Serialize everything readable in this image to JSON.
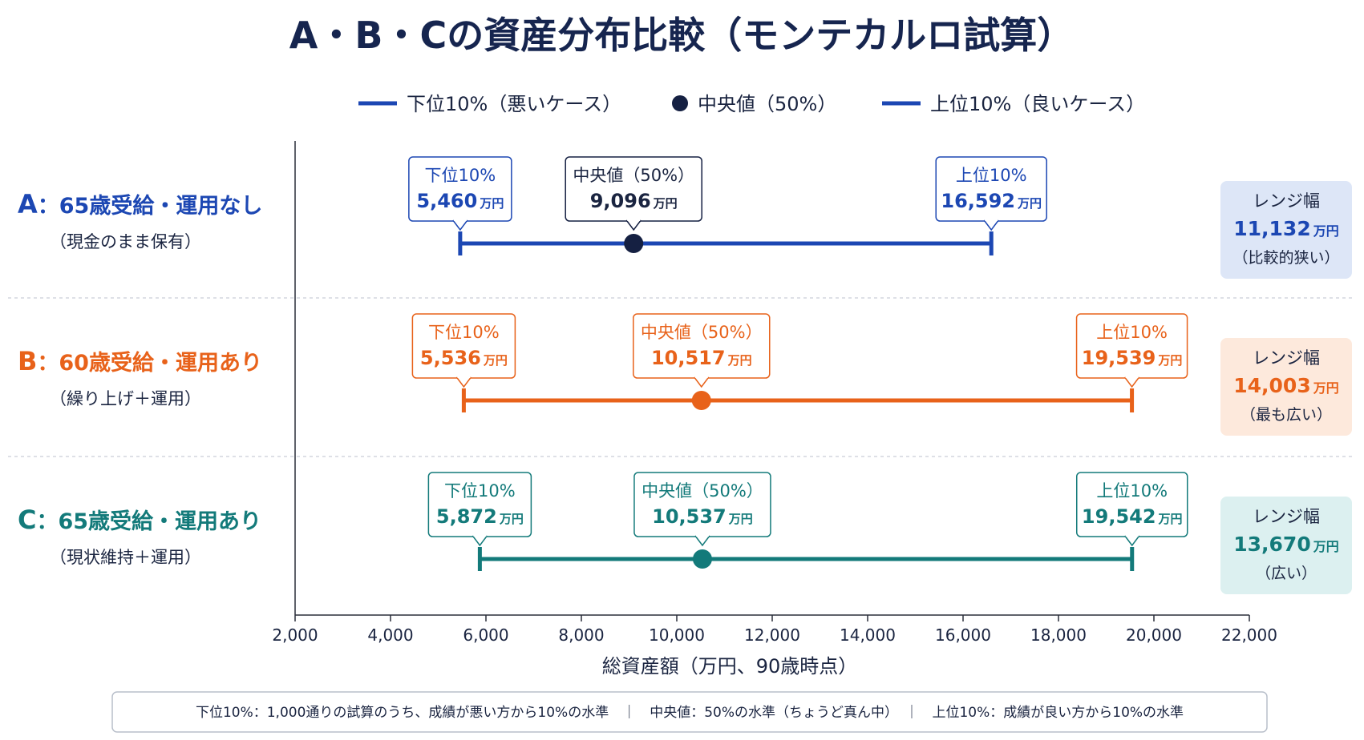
{
  "title": "A・B・Cの資産分布比較（モンテカルロ試算）",
  "legend": [
    {
      "label": "下位10%（悪いケース）",
      "marker": "line"
    },
    {
      "label": "中央値（50%）",
      "marker": "dot"
    },
    {
      "label": "上位10%（良いケース）",
      "marker": "line"
    }
  ],
  "chart_data": {
    "type": "range",
    "xlabel": "総資産額（万円、90歳時点）",
    "xlim": [
      2000,
      22000
    ],
    "xticks": [
      2000,
      4000,
      6000,
      8000,
      10000,
      12000,
      14000,
      16000,
      18000,
      20000,
      22000
    ],
    "xtick_labels": [
      "2,000",
      "4,000",
      "6,000",
      "8,000",
      "10,000",
      "12,000",
      "14,000",
      "16,000",
      "18,000",
      "20,000",
      "22,000"
    ],
    "unit": "万円",
    "callout_labels": {
      "low": "下位10%",
      "median": "中央値（50%）",
      "high": "上位10%"
    },
    "range_label": "レンジ幅",
    "series": [
      {
        "letter": "A",
        "name": "：65歳受給・運用なし",
        "subtitle": "（現金のまま保有）",
        "low": 5460,
        "median": 9096,
        "high": 16592,
        "low_text": "5,460",
        "median_text": "9,096",
        "high_text": "16,592",
        "range": 11132,
        "range_text": "11,132",
        "range_note": "（比較的狭い）",
        "color": "#1c47b3",
        "median_color": "#152042",
        "box_bg": "#dde6f7"
      },
      {
        "letter": "B",
        "name": "：60歳受給・運用あり",
        "subtitle": "（繰り上げ＋運用）",
        "low": 5536,
        "median": 10517,
        "high": 19539,
        "low_text": "5,536",
        "median_text": "10,517",
        "high_text": "19,539",
        "range": 14003,
        "range_text": "14,003",
        "range_note": "（最も広い）",
        "color": "#e8621a",
        "median_color": "#e8621a",
        "box_bg": "#fde9dc"
      },
      {
        "letter": "C",
        "name": "：65歳受給・運用あり",
        "subtitle": "（現状維持＋運用）",
        "low": 5872,
        "median": 10537,
        "high": 19542,
        "low_text": "5,872",
        "median_text": "10,537",
        "high_text": "19,542",
        "range": 13670,
        "range_text": "13,670",
        "range_note": "（広い）",
        "color": "#137a7a",
        "median_color": "#137a7a",
        "box_bg": "#dcf0f0"
      }
    ]
  },
  "footnote": "下位10%：1,000通りの試算のうち、成績が悪い方から10%の水準　｜　中央値：50%の水準（ちょうど真ん中）　｜　上位10%：成績が良い方から10%の水準"
}
